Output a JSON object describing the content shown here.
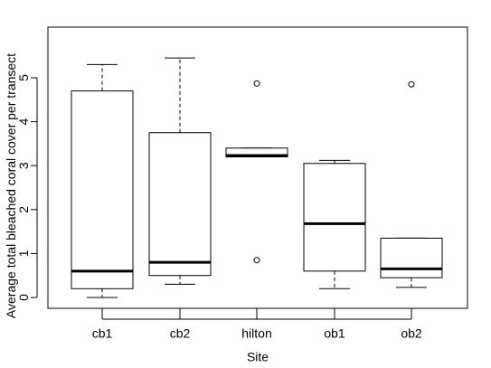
{
  "chart_data": {
    "type": "box",
    "title": "",
    "xlabel": "Site",
    "ylabel": "Average total bleached coral cover per transect",
    "categories": [
      "cb1",
      "cb2",
      "hilton",
      "ob1",
      "ob2"
    ],
    "ylim": [
      0,
      5.5
    ],
    "yticks": [
      0,
      1,
      2,
      3,
      4,
      5
    ],
    "grid": false,
    "boxes": [
      {
        "name": "cb1",
        "whisker_low": 0.0,
        "q1": 0.2,
        "median": 0.6,
        "q3": 4.7,
        "whisker_high": 5.3,
        "outliers": []
      },
      {
        "name": "cb2",
        "whisker_low": 0.3,
        "q1": 0.5,
        "median": 0.8,
        "q3": 3.75,
        "whisker_high": 5.45,
        "outliers": []
      },
      {
        "name": "hilton",
        "whisker_low": 3.2,
        "q1": 3.2,
        "median": 3.23,
        "q3": 3.4,
        "whisker_high": 3.4,
        "outliers": [
          4.87,
          0.85
        ]
      },
      {
        "name": "ob1",
        "whisker_low": 0.2,
        "q1": 0.6,
        "median": 1.68,
        "q3": 3.05,
        "whisker_high": 3.12,
        "outliers": []
      },
      {
        "name": "ob2",
        "whisker_low": 0.23,
        "q1": 0.45,
        "median": 0.65,
        "q3": 1.35,
        "whisker_high": 1.35,
        "outliers": [
          4.85
        ]
      }
    ],
    "colors": {
      "stroke": "#000000",
      "fill": "#ffffff"
    }
  }
}
